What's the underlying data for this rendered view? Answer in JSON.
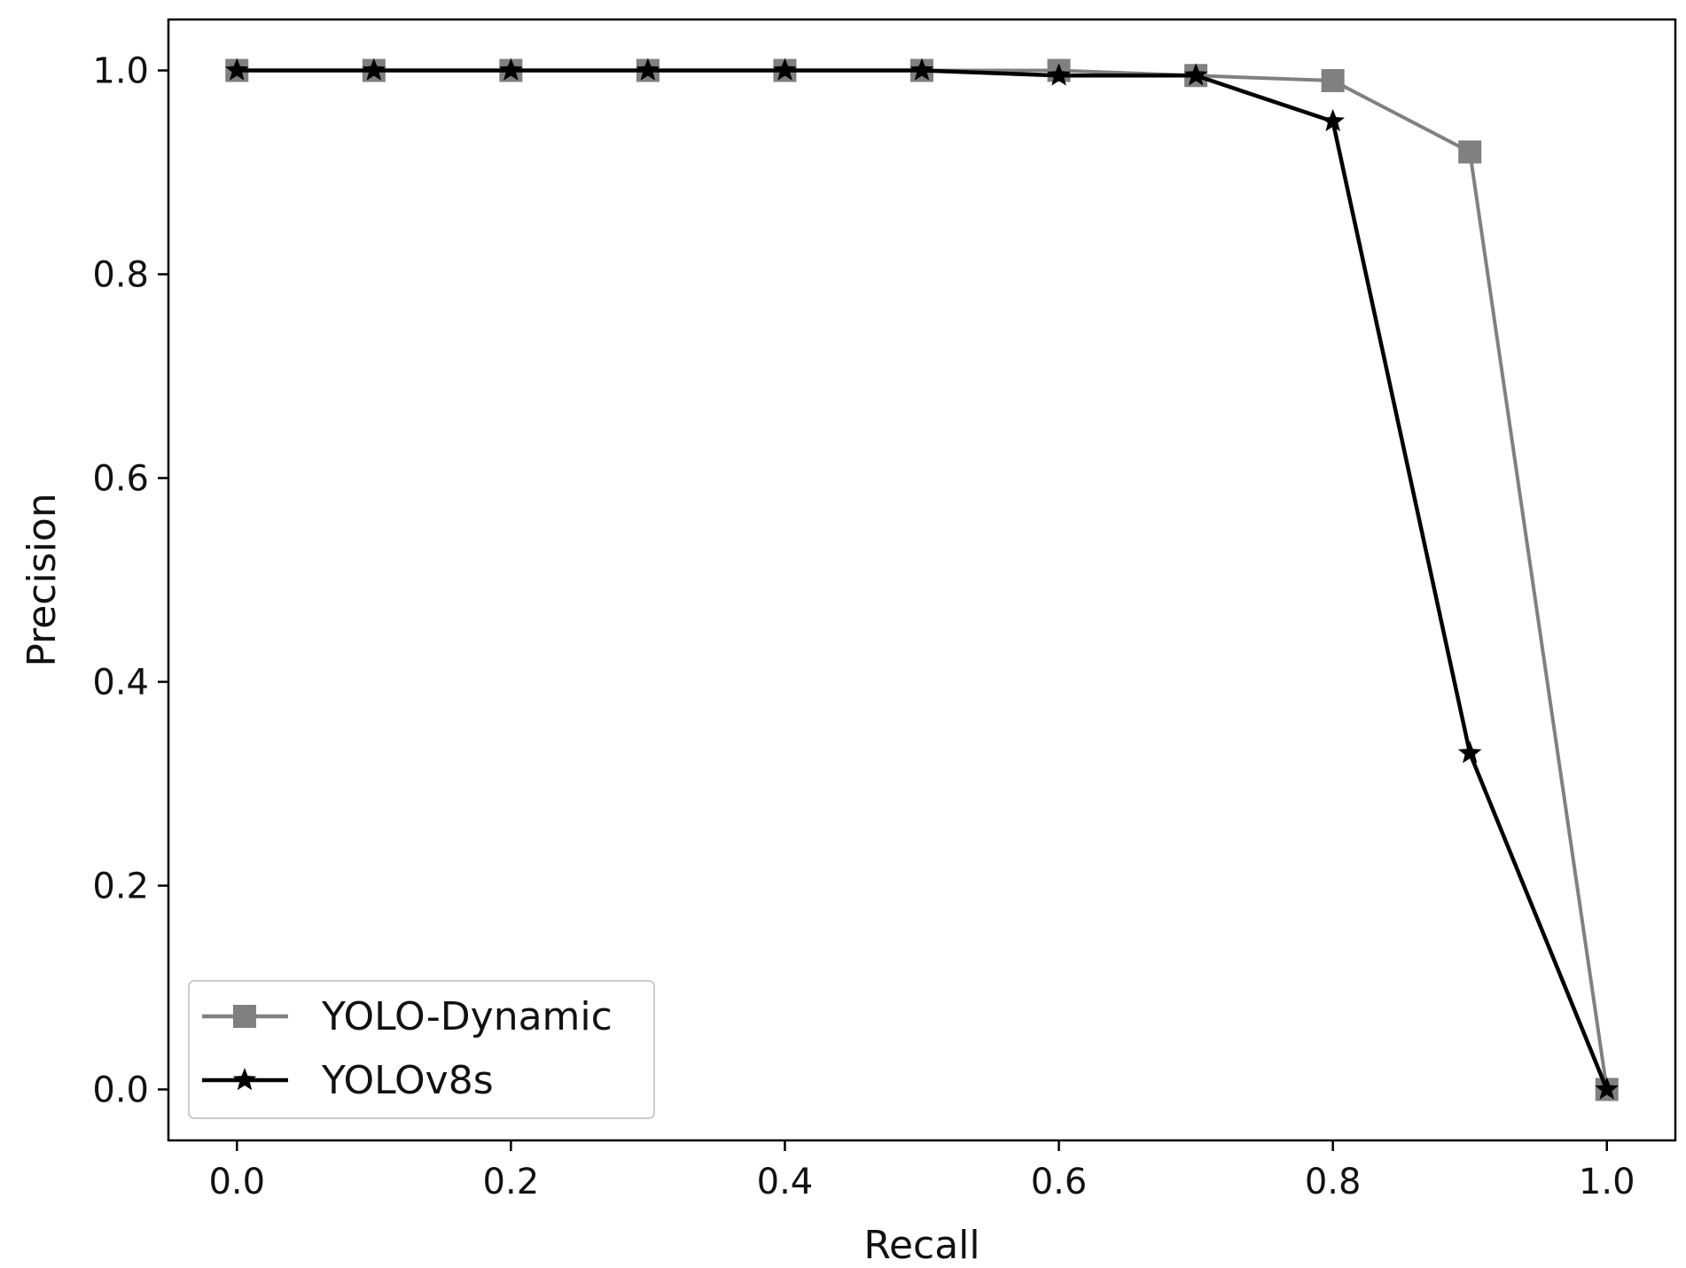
{
  "chart_data": {
    "type": "line",
    "title": "",
    "xlabel": "Recall",
    "ylabel": "Precision",
    "xlim": [
      -0.05,
      1.05
    ],
    "ylim": [
      -0.05,
      1.05
    ],
    "xticks": [
      "0.0",
      "0.2",
      "0.4",
      "0.6",
      "0.8",
      "1.0"
    ],
    "yticks": [
      "0.0",
      "0.2",
      "0.4",
      "0.6",
      "0.8",
      "1.0"
    ],
    "grid": false,
    "legend_position": "lower-left",
    "x": [
      0.0,
      0.1,
      0.2,
      0.3,
      0.4,
      0.5,
      0.6,
      0.7,
      0.8,
      0.9,
      1.0
    ],
    "series": [
      {
        "name": "YOLO-Dynamic",
        "color": "#808080",
        "marker": "square",
        "values": [
          1.0,
          1.0,
          1.0,
          1.0,
          1.0,
          1.0,
          1.0,
          0.995,
          0.99,
          0.92,
          0.0
        ]
      },
      {
        "name": "YOLOv8s",
        "color": "#000000",
        "marker": "star",
        "values": [
          1.0,
          1.0,
          1.0,
          1.0,
          1.0,
          1.0,
          0.995,
          0.995,
          0.95,
          0.33,
          0.0
        ]
      }
    ]
  }
}
